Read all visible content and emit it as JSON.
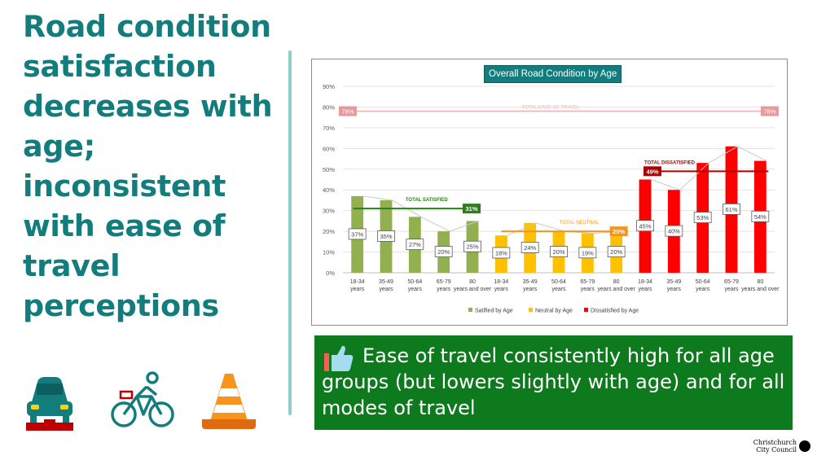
{
  "headline": "Road condition satisfaction decreases with age; inconsistent with ease of travel perceptions",
  "icons": [
    "car-icon",
    "cyclist-icon",
    "traffic-cone-icon"
  ],
  "note": {
    "icon": "thumbs-up-icon",
    "text": "Ease of travel consistently high for all age groups (but lowers slightly with age) and for all modes of travel"
  },
  "logo": {
    "line1": "Christchurch",
    "line2": "City Council"
  },
  "colors": {
    "headline": "#137d7d",
    "satisfied": "#92b050",
    "neutral": "#ffc000",
    "dissatisfied": "#ff0000",
    "ease": "#f2aeb0",
    "note_bg": "#0e7a1e"
  },
  "chart_data": {
    "type": "bar",
    "title": "Overall Road Condition by Age",
    "ylim": [
      0,
      90
    ],
    "yticks": [
      "0%",
      "10%",
      "20%",
      "30%",
      "40%",
      "50%",
      "60%",
      "70%",
      "80%",
      "90%"
    ],
    "grid": true,
    "legend_position": "bottom",
    "categories": [
      "18-34 years",
      "35-49 years",
      "50-64 years",
      "65-79 years",
      "80 years and over"
    ],
    "series": [
      {
        "name": "Satified by Age",
        "color": "#92b050",
        "values": [
          37,
          35,
          27,
          20,
          25
        ],
        "labels": [
          "37%",
          "35%",
          "27%",
          "20%",
          "25%"
        ]
      },
      {
        "name": "Neutral by Age",
        "color": "#ffc000",
        "values": [
          18,
          24,
          20,
          19,
          20
        ],
        "labels": [
          "18%",
          "24%",
          "20%",
          "19%",
          "20%"
        ]
      },
      {
        "name": "Dissatisfied by Age",
        "color": "#ff0000",
        "values": [
          45,
          40,
          53,
          61,
          54
        ],
        "labels": [
          "45%",
          "40%",
          "53%",
          "61%",
          "54%"
        ]
      }
    ],
    "reference_lines": [
      {
        "label": "TOTAL EASE OF TRAVEL",
        "value": 78,
        "value_label": "78%",
        "color": "#f2aeb0"
      },
      {
        "label": "TOTAL SATISFIED",
        "value": 31,
        "value_label": "31%",
        "color": "#2e7d1a"
      },
      {
        "label": "TOTAL NEUTRAL",
        "value": 20,
        "value_label": "20%",
        "color": "#f7941d"
      },
      {
        "label": "TOTAL DISSATISFIED",
        "value": 49,
        "value_label": "49%",
        "color": "#b00000"
      }
    ]
  }
}
